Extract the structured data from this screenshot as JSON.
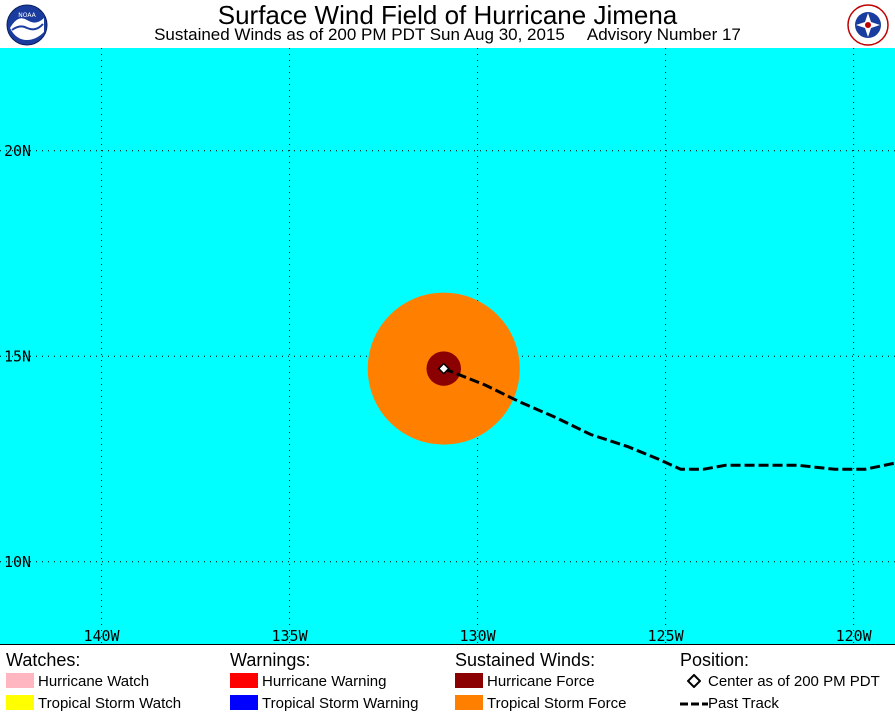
{
  "header": {
    "title": "Surface Wind Field of Hurricane Jimena",
    "subtitle_left": "Sustained Winds as of 200 PM PDT Sun Aug 30, 2015",
    "subtitle_right": "Advisory Number 17",
    "logo_left": "noaa-logo-icon",
    "logo_right": "nws-logo-icon"
  },
  "map": {
    "background_color": "#00ffff",
    "lat_labels": [
      "20N",
      "15N",
      "10N"
    ],
    "lon_labels": [
      "140W",
      "135W",
      "130W",
      "125W",
      "120W"
    ],
    "lat_values": [
      20,
      15,
      10
    ],
    "lon_values": [
      -140,
      -135,
      -130,
      -125,
      -120
    ],
    "extent": {
      "lon_min": -142.7,
      "lon_max": -118.9,
      "lat_min": 8,
      "lat_max": 22.5
    },
    "storm": {
      "center": {
        "lat": 14.7,
        "lon": -130.9
      },
      "tropical_storm_force_radius_deg": 1.85,
      "hurricane_force_radius_deg": 0.42,
      "tropical_storm_color": "#ff8000",
      "hurricane_color": "#8b0000"
    },
    "past_track": [
      {
        "lon": -130.9,
        "lat": 14.7
      },
      {
        "lon": -129.8,
        "lat": 14.3
      },
      {
        "lon": -128.9,
        "lat": 13.9
      },
      {
        "lon": -127.9,
        "lat": 13.5
      },
      {
        "lon": -127.0,
        "lat": 13.1
      },
      {
        "lon": -126.0,
        "lat": 12.8
      },
      {
        "lon": -125.2,
        "lat": 12.5
      },
      {
        "lon": -124.6,
        "lat": 12.25
      },
      {
        "lon": -124.0,
        "lat": 12.25
      },
      {
        "lon": -123.4,
        "lat": 12.35
      },
      {
        "lon": -122.5,
        "lat": 12.35
      },
      {
        "lon": -121.5,
        "lat": 12.35
      },
      {
        "lon": -120.5,
        "lat": 12.25
      },
      {
        "lon": -119.7,
        "lat": 12.25
      },
      {
        "lon": -118.9,
        "lat": 12.4
      }
    ]
  },
  "legend": {
    "watches": {
      "heading": "Watches:",
      "items": [
        {
          "label": "Hurricane Watch",
          "color": "#ffb6c1"
        },
        {
          "label": "Tropical Storm Watch",
          "color": "#ffff00"
        }
      ]
    },
    "warnings": {
      "heading": "Warnings:",
      "items": [
        {
          "label": "Hurricane Warning",
          "color": "#ff0000"
        },
        {
          "label": "Tropical Storm Warning",
          "color": "#0000ff"
        }
      ]
    },
    "winds": {
      "heading": "Sustained Winds:",
      "items": [
        {
          "label": "Hurricane Force",
          "color": "#8b0000"
        },
        {
          "label": "Tropical Storm Force",
          "color": "#ff8000"
        }
      ]
    },
    "position": {
      "heading": "Position:",
      "center_label": "Center as of 200 PM PDT",
      "track_label": "Past Track"
    }
  }
}
